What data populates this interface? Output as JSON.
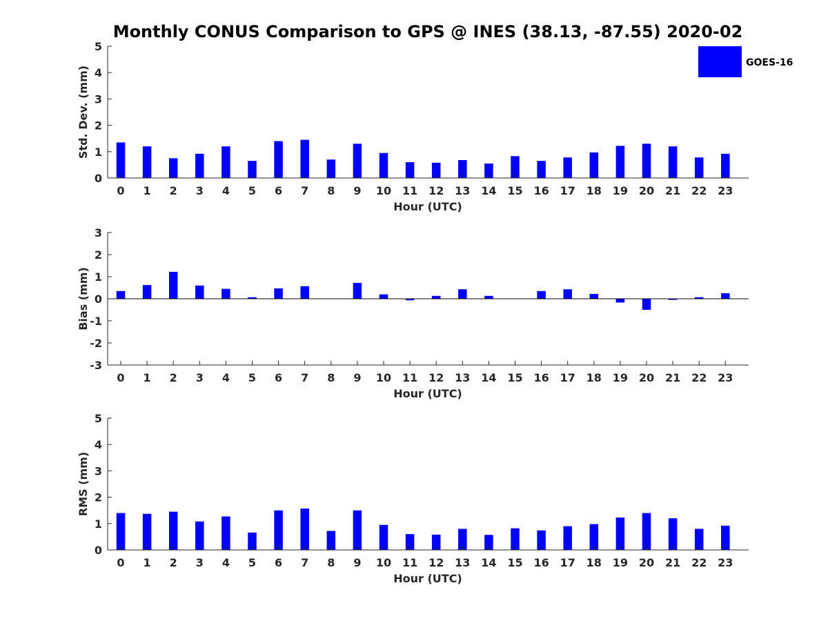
{
  "figure": {
    "title": "Monthly CONUS Comparison to GPS @ INES (38.13, -87.55) 2020-02"
  },
  "legend": {
    "label": "GOES-16",
    "color": "#0000ff",
    "placement": "top-right"
  },
  "chart_data": [
    {
      "type": "bar",
      "title": "Monthly CONUS Comparison to GPS @ INES (38.13, -87.55) 2020-02",
      "xlabel": "Hour (UTC)",
      "ylabel": "Std. Dev. (mm)",
      "ylim": [
        0,
        5
      ],
      "yticks": [
        "0",
        "1",
        "2",
        "3",
        "4",
        "5"
      ],
      "categories": [
        "0",
        "1",
        "2",
        "3",
        "4",
        "5",
        "6",
        "7",
        "8",
        "9",
        "10",
        "11",
        "12",
        "13",
        "14",
        "15",
        "16",
        "17",
        "18",
        "19",
        "20",
        "21",
        "22",
        "23"
      ],
      "series": [
        {
          "name": "GOES-16",
          "color": "#0000ff",
          "values": [
            1.35,
            1.2,
            0.75,
            0.92,
            1.2,
            0.65,
            1.4,
            1.45,
            0.7,
            1.3,
            0.95,
            0.6,
            0.58,
            0.68,
            0.55,
            0.83,
            0.65,
            0.78,
            0.97,
            1.22,
            1.3,
            1.2,
            0.78,
            0.92
          ]
        }
      ],
      "grid": false
    },
    {
      "type": "bar",
      "xlabel": "Hour (UTC)",
      "ylabel": "Bias (mm)",
      "ylim": [
        -3,
        3
      ],
      "yticks": [
        "-3",
        "-2",
        "-1",
        "0",
        "1",
        "2",
        "3"
      ],
      "categories": [
        "0",
        "1",
        "2",
        "3",
        "4",
        "5",
        "6",
        "7",
        "8",
        "9",
        "10",
        "11",
        "12",
        "13",
        "14",
        "15",
        "16",
        "17",
        "18",
        "19",
        "20",
        "21",
        "22",
        "23"
      ],
      "series": [
        {
          "name": "GOES-16",
          "color": "#0000ff",
          "values": [
            0.35,
            0.62,
            1.22,
            0.6,
            0.45,
            0.07,
            0.47,
            0.57,
            0.0,
            0.72,
            0.2,
            -0.07,
            0.13,
            0.43,
            0.13,
            0.0,
            0.35,
            0.43,
            0.22,
            -0.17,
            -0.5,
            -0.05,
            0.07,
            0.25
          ]
        }
      ],
      "grid": false
    },
    {
      "type": "bar",
      "xlabel": "Hour (UTC)",
      "ylabel": "RMS (mm)",
      "ylim": [
        0,
        5
      ],
      "yticks": [
        "0",
        "1",
        "2",
        "3",
        "4",
        "5"
      ],
      "categories": [
        "0",
        "1",
        "2",
        "3",
        "4",
        "5",
        "6",
        "7",
        "8",
        "9",
        "10",
        "11",
        "12",
        "13",
        "14",
        "15",
        "16",
        "17",
        "18",
        "19",
        "20",
        "21",
        "22",
        "23"
      ],
      "series": [
        {
          "name": "GOES-16",
          "color": "#0000ff",
          "values": [
            1.4,
            1.37,
            1.45,
            1.08,
            1.27,
            0.66,
            1.5,
            1.57,
            0.72,
            1.5,
            0.95,
            0.6,
            0.58,
            0.8,
            0.57,
            0.82,
            0.74,
            0.9,
            0.98,
            1.23,
            1.4,
            1.2,
            0.8,
            0.92
          ]
        }
      ],
      "grid": false
    }
  ]
}
